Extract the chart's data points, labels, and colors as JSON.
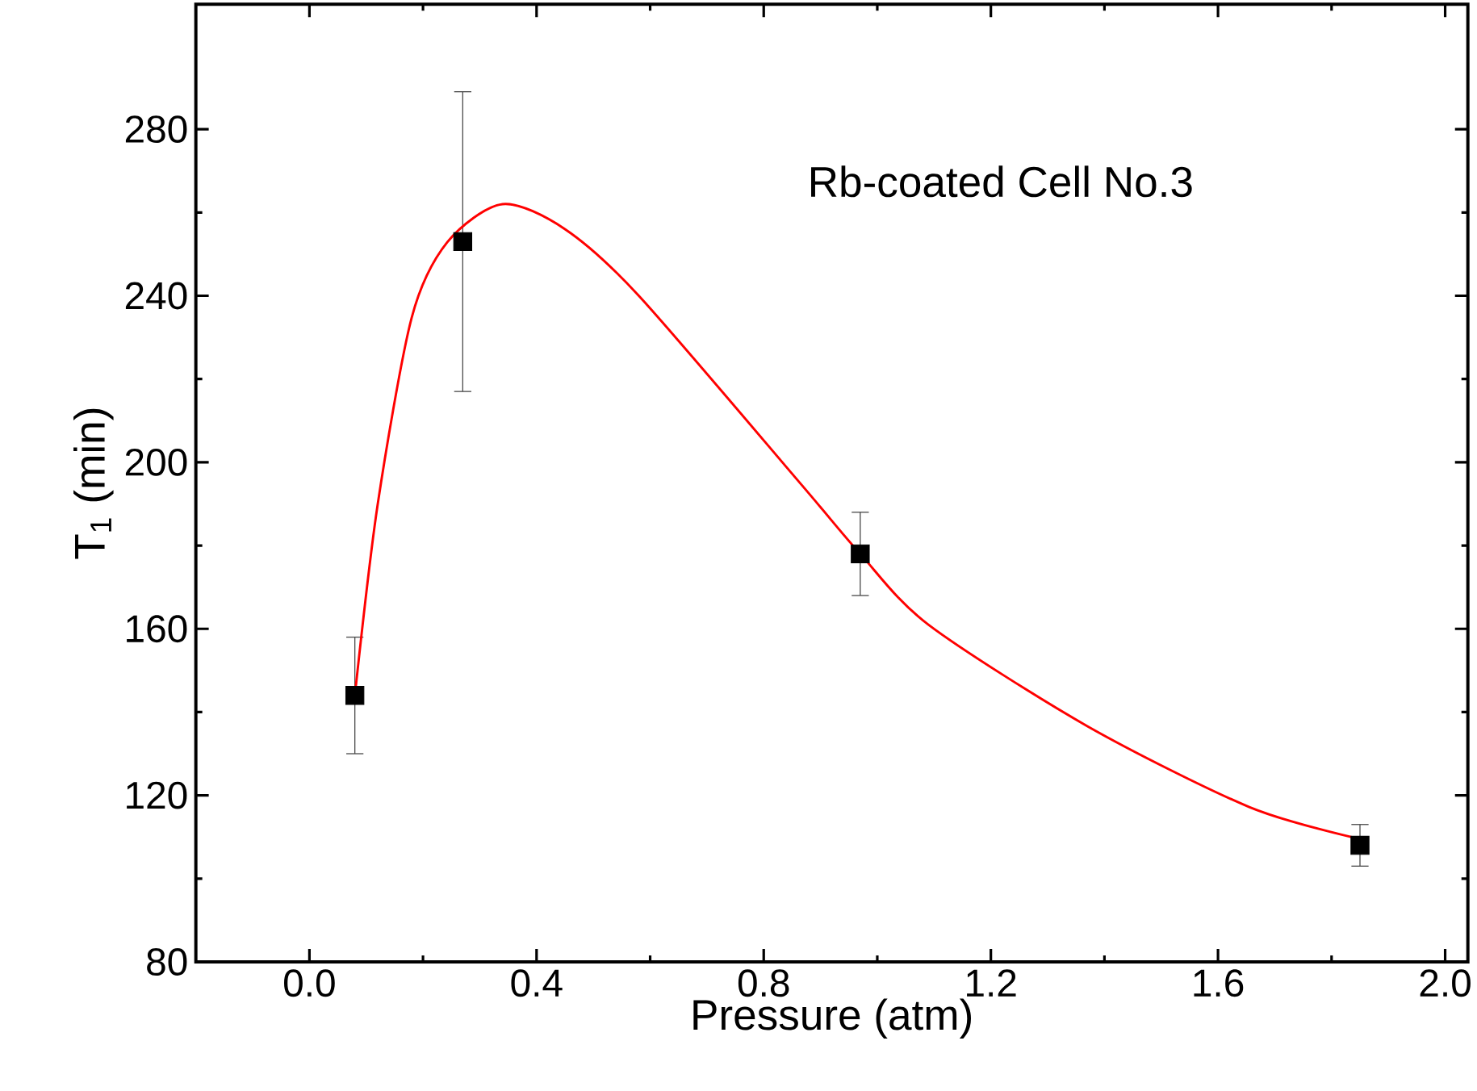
{
  "chart_data": {
    "type": "scatter",
    "xlabel": "Pressure (atm)",
    "ylabel": "T$_{1}$ (min)",
    "xlim": [
      -0.2,
      2.04
    ],
    "ylim": [
      80,
      310
    ],
    "xticks": [
      {
        "value": 0,
        "label": "0.0"
      },
      0.4,
      0.8,
      1.2,
      1.6,
      {
        "value": 2,
        "label": "2.0"
      }
    ],
    "yticks": [
      80,
      120,
      160,
      200,
      240,
      280
    ],
    "annotations": [
      "Rb-coated Cell No.3"
    ],
    "series": [
      {
        "color": "#000000",
        "marker": "square",
        "x": [
          0.08,
          0.27,
          0.97,
          1.85
        ],
        "values": [
          144,
          253,
          178,
          108
        ],
        "errors": [
          14,
          36,
          10,
          5
        ]
      },
      {
        "type": "line",
        "color": "#ff0000",
        "marker": "none",
        "line_style": "solid",
        "x": [
          0.08,
          0.12,
          0.18,
          0.243,
          0.34,
          0.45,
          0.58,
          0.864,
          0.97,
          1.09,
          1.37,
          1.655,
          1.85
        ],
        "values": [
          144,
          189.7,
          234.7,
          252.9,
          262,
          256,
          240,
          195,
          178,
          161,
          136.6,
          117.2,
          109.5
        ]
      }
    ]
  }
}
